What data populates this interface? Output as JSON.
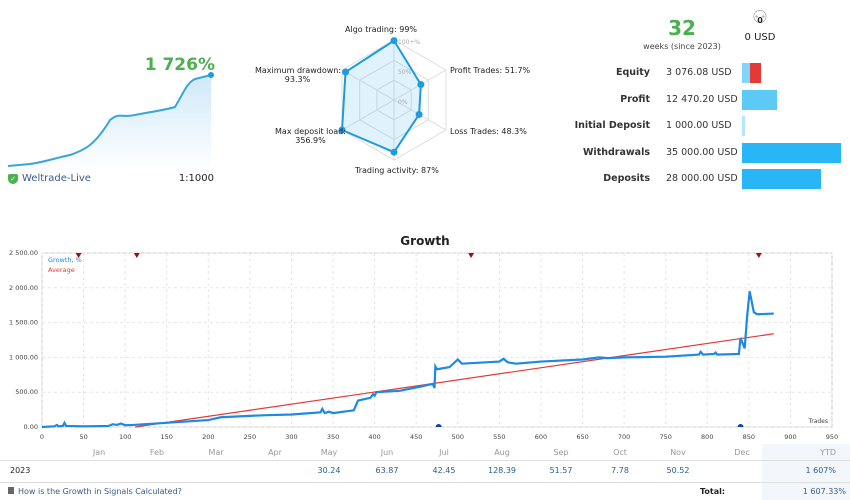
{
  "summary": {
    "gain": "1 726%",
    "broker": "Weltrade-Live",
    "leverage": "1:1000"
  },
  "radar": {
    "axes": [
      {
        "label": "Algo trading:",
        "value": "99%",
        "pct": 99
      },
      {
        "label": "Profit Trades:",
        "value": "51.7%",
        "pct": 51.7
      },
      {
        "label": "Loss Trades:",
        "value": "48.3%",
        "pct": 48.3
      },
      {
        "label": "Trading activity:",
        "value": "87%",
        "pct": 87
      },
      {
        "label": "Max deposit load:",
        "value": "356.9%",
        "pct": 100
      },
      {
        "label": "Maximum drawdown:",
        "value": "93.3%",
        "pct": 93.3
      }
    ],
    "scale": [
      "100+%",
      "50%",
      "0%"
    ]
  },
  "weeks": {
    "count": "32",
    "label": "weeks (since 2023)"
  },
  "subscribers": {
    "count": "0",
    "funds": "0 USD"
  },
  "stats": [
    {
      "label": "Equity",
      "value": "3 076.08 USD"
    },
    {
      "label": "Profit",
      "value": "12 470.20 USD"
    },
    {
      "label": "Initial Deposit",
      "value": "1 000.00 USD"
    },
    {
      "label": "Withdrawals",
      "value": "35 000.00 USD"
    },
    {
      "label": "Deposits",
      "value": "28 000.00 USD"
    }
  ],
  "colors": {
    "green": "#4caf50",
    "blue": "#1e88e5",
    "red": "#e53935",
    "bar": "#29b6f6",
    "barLight": "#81d4fa"
  },
  "chart_data": {
    "type": "line",
    "title": "Growth",
    "xlabel": "Trades",
    "ylabel": "",
    "xlim": [
      0,
      950
    ],
    "ylim": [
      0,
      2500
    ],
    "grid": true,
    "legend": "top-left",
    "xticks": [
      0,
      50,
      100,
      150,
      200,
      250,
      300,
      350,
      400,
      450,
      500,
      550,
      600,
      650,
      700,
      750,
      800,
      850,
      900,
      950
    ],
    "yticks": [
      "0.00",
      "500.00",
      "1 000.00",
      "1 500.00",
      "2 000.00",
      "2 500.00"
    ],
    "series": [
      {
        "name": "Growth, %",
        "color": "#1e88e5",
        "points": [
          [
            0,
            0
          ],
          [
            15,
            10
          ],
          [
            18,
            30
          ],
          [
            20,
            10
          ],
          [
            25,
            15
          ],
          [
            27,
            60
          ],
          [
            29,
            15
          ],
          [
            50,
            10
          ],
          [
            80,
            15
          ],
          [
            85,
            40
          ],
          [
            90,
            30
          ],
          [
            95,
            50
          ],
          [
            100,
            25
          ],
          [
            110,
            30
          ],
          [
            150,
            60
          ],
          [
            200,
            100
          ],
          [
            215,
            140
          ],
          [
            250,
            160
          ],
          [
            270,
            170
          ],
          [
            300,
            180
          ],
          [
            335,
            210
          ],
          [
            337,
            260
          ],
          [
            340,
            200
          ],
          [
            345,
            220
          ],
          [
            350,
            200
          ],
          [
            375,
            240
          ],
          [
            380,
            380
          ],
          [
            395,
            420
          ],
          [
            398,
            470
          ],
          [
            400,
            450
          ],
          [
            402,
            500
          ],
          [
            430,
            520
          ],
          [
            455,
            580
          ],
          [
            470,
            620
          ],
          [
            472,
            560
          ],
          [
            473,
            870
          ],
          [
            475,
            830
          ],
          [
            490,
            860
          ],
          [
            500,
            970
          ],
          [
            505,
            910
          ],
          [
            550,
            940
          ],
          [
            555,
            980
          ],
          [
            560,
            930
          ],
          [
            570,
            910
          ],
          [
            600,
            940
          ],
          [
            650,
            970
          ],
          [
            670,
            1000
          ],
          [
            680,
            990
          ],
          [
            700,
            1000
          ],
          [
            750,
            1010
          ],
          [
            790,
            1040
          ],
          [
            792,
            1080
          ],
          [
            795,
            1040
          ],
          [
            808,
            1050
          ],
          [
            810,
            1070
          ],
          [
            812,
            1040
          ],
          [
            838,
            1050
          ],
          [
            840,
            1280
          ],
          [
            845,
            1130
          ],
          [
            848,
            1600
          ],
          [
            851,
            1950
          ],
          [
            856,
            1650
          ],
          [
            860,
            1620
          ],
          [
            880,
            1630
          ]
        ]
      },
      {
        "name": "Average",
        "color": "#e53935",
        "points": [
          [
            112,
            0
          ],
          [
            880,
            1340
          ]
        ]
      }
    ],
    "top_markers": [
      44,
      114,
      516,
      862
    ],
    "bottom_markers": [
      477,
      840
    ]
  },
  "monthly": {
    "months": [
      "Jan",
      "Feb",
      "Mar",
      "Apr",
      "May",
      "Jun",
      "Jul",
      "Aug",
      "Sep",
      "Oct",
      "Nov",
      "Dec",
      "YTD"
    ],
    "year": "2023",
    "values": [
      "",
      "",
      "",
      "",
      "30.24",
      "63.87",
      "42.45",
      "128.39",
      "51.57",
      "7.78",
      "50.52",
      "",
      "1 607%"
    ],
    "help": "How is the Growth in Signals Calculated?",
    "total_label": "Total:",
    "total": "1 607.33%"
  }
}
